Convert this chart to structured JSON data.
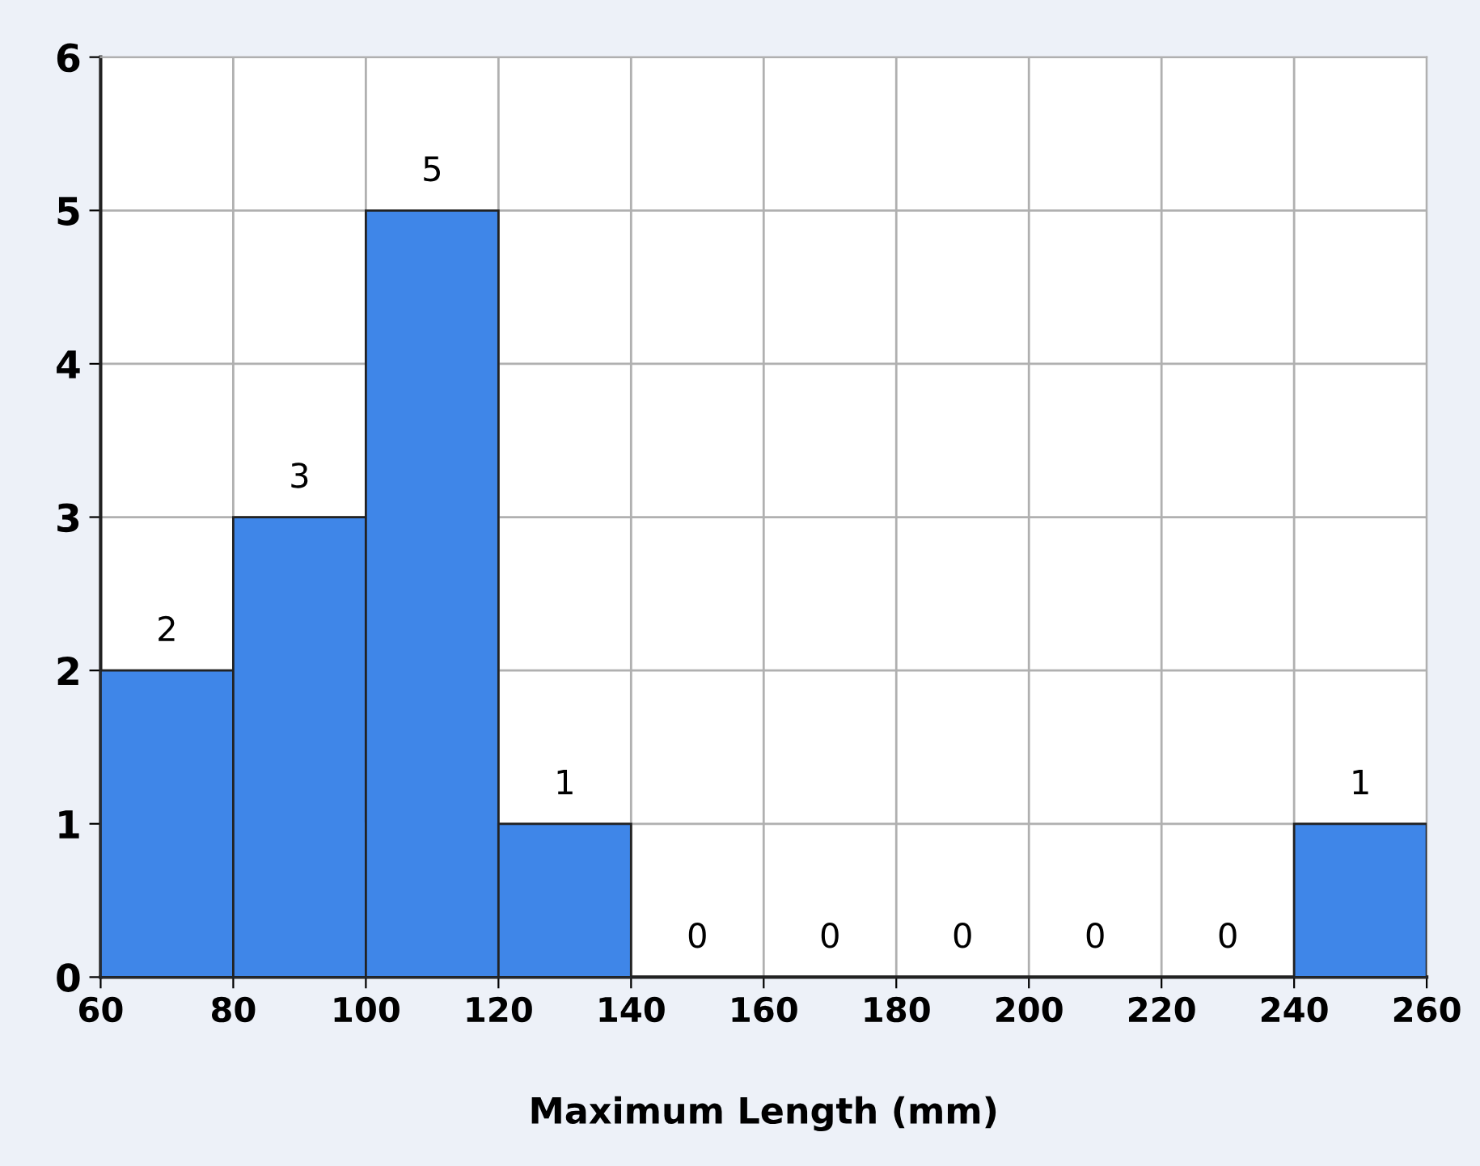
{
  "chart_data": {
    "type": "histogram",
    "xlabel": "Maximum Length (mm)",
    "bins": [
      60,
      80,
      100,
      120,
      140,
      160,
      180,
      200,
      220,
      240,
      260
    ],
    "values": [
      2,
      3,
      5,
      1,
      0,
      0,
      0,
      0,
      0,
      1
    ],
    "color": "#3f86e8",
    "data_labels": true,
    "xlim": [
      60,
      260
    ],
    "xticks": [
      60,
      80,
      100,
      120,
      140,
      160,
      180,
      200,
      220,
      240,
      260
    ],
    "ylim": [
      0,
      6
    ],
    "yticks": [
      0,
      1,
      2,
      3,
      4,
      5,
      6
    ],
    "grid": true
  }
}
